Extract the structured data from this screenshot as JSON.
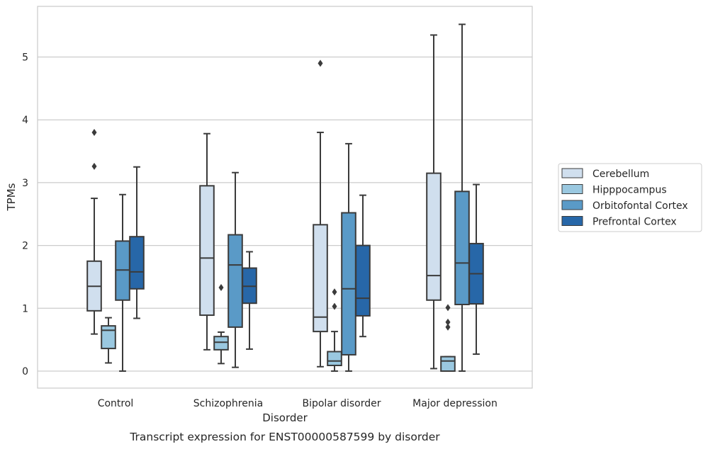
{
  "chart_data": {
    "type": "box",
    "caption": "Transcript expression for ENST00000587599 by disorder",
    "xlabel": "Disorder",
    "ylabel": "TPMs",
    "ylim": [
      -0.27,
      5.8
    ],
    "yticks": [
      0,
      1,
      2,
      3,
      4,
      5
    ],
    "grid": true,
    "legend_position": "right",
    "categories": [
      "Control",
      "Schizophrenia",
      "Bipolar disorder",
      "Major depression"
    ],
    "series": [
      {
        "name": "Cerebellum",
        "color": "#d0dfee",
        "boxes": [
          {
            "whislo": 0.59,
            "q1": 0.96,
            "med": 1.35,
            "q3": 1.75,
            "whishi": 2.75,
            "fliers": [
              3.26,
              3.8
            ]
          },
          {
            "whislo": 0.34,
            "q1": 0.89,
            "med": 1.8,
            "q3": 2.95,
            "whishi": 3.78,
            "fliers": []
          },
          {
            "whislo": 0.07,
            "q1": 0.63,
            "med": 0.86,
            "q3": 2.33,
            "whishi": 3.8,
            "fliers": [
              4.9
            ]
          },
          {
            "whislo": 0.04,
            "q1": 1.13,
            "med": 1.52,
            "q3": 3.15,
            "whishi": 5.35,
            "fliers": []
          }
        ]
      },
      {
        "name": "Hipppocampus",
        "color": "#9ac8e0",
        "boxes": [
          {
            "whislo": 0.13,
            "q1": 0.36,
            "med": 0.65,
            "q3": 0.72,
            "whishi": 0.85,
            "fliers": []
          },
          {
            "whislo": 0.12,
            "q1": 0.34,
            "med": 0.46,
            "q3": 0.55,
            "whishi": 0.62,
            "fliers": [
              1.33
            ]
          },
          {
            "whislo": 0.0,
            "q1": 0.09,
            "med": 0.16,
            "q3": 0.31,
            "whishi": 0.63,
            "fliers": [
              1.03,
              1.26
            ]
          },
          {
            "whislo": 0.0,
            "q1": 0.0,
            "med": 0.16,
            "q3": 0.23,
            "whishi": 0.23,
            "fliers": [
              0.7,
              0.78,
              1.01
            ]
          }
        ]
      },
      {
        "name": "Orbitofontal Cortex",
        "color": "#5a9ac7",
        "boxes": [
          {
            "whislo": 0.0,
            "q1": 1.13,
            "med": 1.61,
            "q3": 2.07,
            "whishi": 2.81,
            "fliers": []
          },
          {
            "whislo": 0.06,
            "q1": 0.7,
            "med": 1.69,
            "q3": 2.17,
            "whishi": 3.16,
            "fliers": []
          },
          {
            "whislo": 0.0,
            "q1": 0.26,
            "med": 1.31,
            "q3": 2.52,
            "whishi": 3.62,
            "fliers": []
          },
          {
            "whislo": 0.0,
            "q1": 1.06,
            "med": 1.72,
            "q3": 2.86,
            "whishi": 5.52,
            "fliers": []
          }
        ]
      },
      {
        "name": "Prefrontal Cortex",
        "color": "#2767a8",
        "boxes": [
          {
            "whislo": 0.84,
            "q1": 1.31,
            "med": 1.58,
            "q3": 2.14,
            "whishi": 3.25,
            "fliers": []
          },
          {
            "whislo": 0.35,
            "q1": 1.08,
            "med": 1.35,
            "q3": 1.64,
            "whishi": 1.9,
            "fliers": []
          },
          {
            "whislo": 0.55,
            "q1": 0.88,
            "med": 1.16,
            "q3": 2.0,
            "whishi": 2.8,
            "fliers": []
          },
          {
            "whislo": 0.27,
            "q1": 1.07,
            "med": 1.55,
            "q3": 2.03,
            "whishi": 2.97,
            "fliers": []
          }
        ]
      }
    ]
  }
}
